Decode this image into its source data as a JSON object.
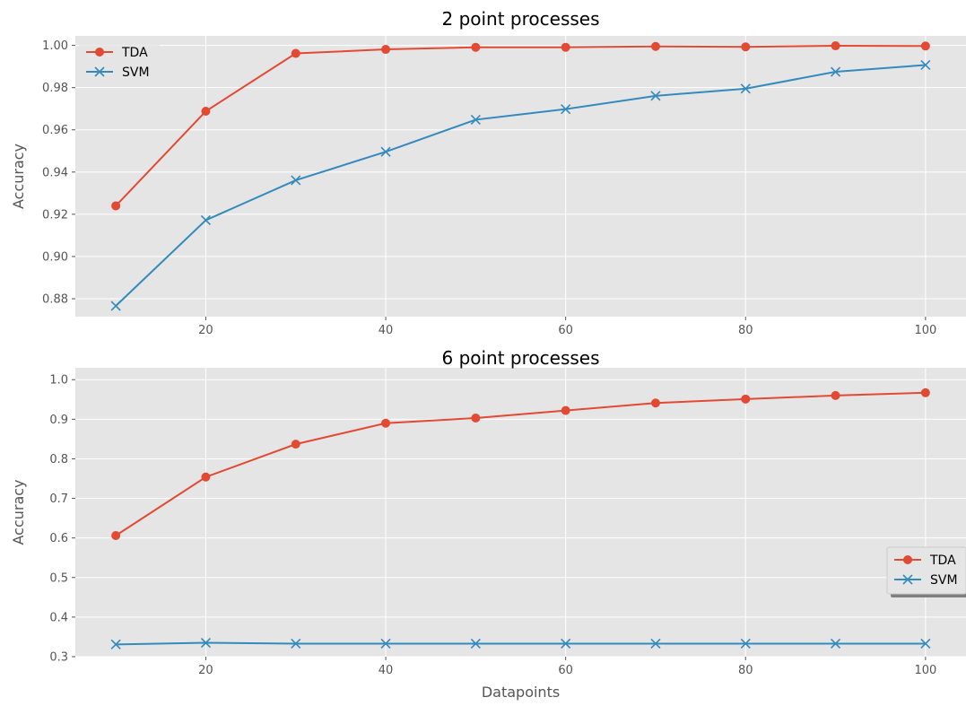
{
  "chart_data": [
    {
      "type": "line",
      "title": "2 point processes",
      "xlabel": "",
      "ylabel": "Accuracy",
      "x": [
        10,
        20,
        30,
        40,
        50,
        60,
        70,
        80,
        90,
        100
      ],
      "xlim": [
        5.5,
        104.5
      ],
      "ylim": [
        0.8715,
        1.0045
      ],
      "xticks": [
        20,
        40,
        60,
        80,
        100
      ],
      "yticks": [
        0.88,
        0.9,
        0.92,
        0.94,
        0.96,
        0.98,
        1.0
      ],
      "ytick_format": 2,
      "grid": true,
      "legend_position": "upper left",
      "series": [
        {
          "name": "TDA",
          "color": "#E24A33",
          "marker": "circle",
          "values": [
            0.924,
            0.9688,
            0.9962,
            0.9981,
            0.9991,
            0.9991,
            0.9995,
            0.9993,
            0.9998,
            0.9997
          ]
        },
        {
          "name": "SVM",
          "color": "#348ABD",
          "marker": "x",
          "values": [
            0.8766,
            0.9172,
            0.9361,
            0.9496,
            0.9648,
            0.9698,
            0.9761,
            0.9795,
            0.9875,
            0.9907
          ]
        }
      ]
    },
    {
      "type": "line",
      "title": "6 point processes",
      "xlabel": "Datapoints",
      "ylabel": "Accuracy",
      "x": [
        10,
        20,
        30,
        40,
        50,
        60,
        70,
        80,
        90,
        100
      ],
      "xlim": [
        5.5,
        104.5
      ],
      "ylim": [
        0.3,
        1.03
      ],
      "xticks": [
        20,
        40,
        60,
        80,
        100
      ],
      "yticks": [
        0.3,
        0.4,
        0.5,
        0.6,
        0.7,
        0.8,
        0.9,
        1.0
      ],
      "ytick_format": 1,
      "grid": true,
      "legend_position": "center right",
      "series": [
        {
          "name": "TDA",
          "color": "#E24A33",
          "marker": "circle",
          "values": [
            0.606,
            0.754,
            0.837,
            0.89,
            0.903,
            0.922,
            0.941,
            0.951,
            0.96,
            0.967
          ]
        },
        {
          "name": "SVM",
          "color": "#348ABD",
          "marker": "x",
          "values": [
            0.331,
            0.335,
            0.333,
            0.333,
            0.333,
            0.333,
            0.333,
            0.333,
            0.333,
            0.333
          ]
        }
      ]
    }
  ]
}
